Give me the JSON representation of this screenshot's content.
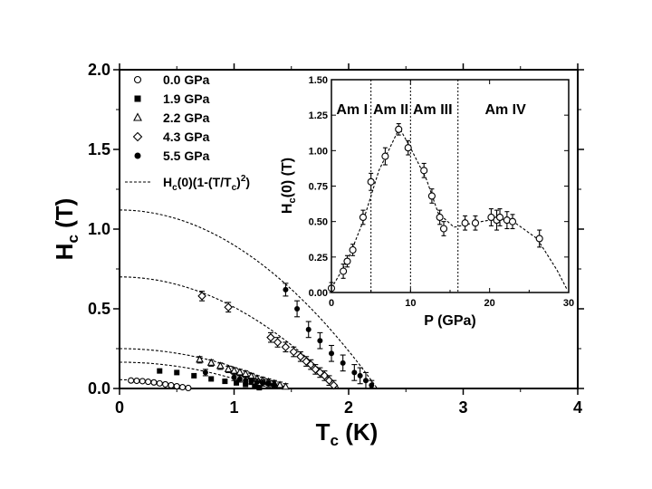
{
  "chart_data": [
    {
      "type": "scatter",
      "xlabel": "T",
      "xlabel_sub": "c",
      "xlabel_unit": " (K)",
      "ylabel": "H",
      "ylabel_sub": "c",
      "ylabel_unit": " (T)",
      "xlim": [
        0,
        4
      ],
      "ylim": [
        0,
        2.0
      ],
      "xticks": [
        0,
        1,
        2,
        3,
        4
      ],
      "xtick_labels": [
        "0",
        "1",
        "2",
        "3",
        "4"
      ],
      "yticks": [
        0,
        0.5,
        1.0,
        1.5,
        2.0
      ],
      "ytick_labels": [
        "0.0",
        "0.5",
        "1.0",
        "1.5",
        "2.0"
      ],
      "legend_position": "top-left",
      "series": [
        {
          "name": "0.0 GPa",
          "marker": "open-circle",
          "x": [
            0.1,
            0.15,
            0.2,
            0.25,
            0.3,
            0.35,
            0.4,
            0.45,
            0.5,
            0.55,
            0.6
          ],
          "y": [
            0.05,
            0.048,
            0.046,
            0.042,
            0.038,
            0.032,
            0.026,
            0.02,
            0.014,
            0.008,
            0.003
          ]
        },
        {
          "name": "1.9 GPa",
          "marker": "filled-square",
          "x": [
            0.35,
            0.5,
            0.65,
            0.8,
            0.92,
            1.02,
            1.1,
            1.18,
            1.22
          ],
          "y": [
            0.11,
            0.1,
            0.08,
            0.06,
            0.045,
            0.035,
            0.025,
            0.015,
            0.005
          ]
        },
        {
          "name": "2.2 GPa",
          "marker": "open-triangle",
          "x": [
            0.7,
            0.8,
            0.88,
            0.95,
            1.0,
            1.05,
            1.1,
            1.15,
            1.2,
            1.25,
            1.3,
            1.35,
            1.4,
            1.45
          ],
          "y": [
            0.18,
            0.16,
            0.14,
            0.12,
            0.11,
            0.1,
            0.09,
            0.075,
            0.06,
            0.05,
            0.04,
            0.03,
            0.02,
            0.01
          ],
          "yerr": [
            0.02,
            0.02,
            0.02,
            0.02,
            0.02,
            0.02,
            0.02,
            0.02,
            0.02,
            0.02,
            0.02,
            0.02,
            0.02,
            0.02
          ]
        },
        {
          "name": "4.3 GPa",
          "marker": "open-diamond",
          "x": [
            0.72,
            0.95,
            1.32,
            1.38,
            1.45,
            1.52,
            1.58,
            1.63,
            1.67,
            1.71,
            1.75,
            1.79,
            1.83,
            1.87
          ],
          "y": [
            0.58,
            0.51,
            0.32,
            0.29,
            0.26,
            0.23,
            0.2,
            0.17,
            0.15,
            0.12,
            0.1,
            0.08,
            0.05,
            0.02
          ],
          "yerr": [
            0.03,
            0.03,
            0.03,
            0.03,
            0.03,
            0.03,
            0.03,
            0.03,
            0.03,
            0.03,
            0.03,
            0.03,
            0.03,
            0.03
          ]
        },
        {
          "name": "5.5 GPa",
          "marker": "filled-circle",
          "x": [
            0.75,
            1.0,
            1.05,
            1.1,
            1.15,
            1.2,
            1.25,
            1.3,
            1.35,
            1.45,
            1.55,
            1.65,
            1.75,
            1.85,
            1.95,
            2.05,
            2.1,
            2.15,
            2.2
          ],
          "y": [
            0.1,
            0.07,
            0.06,
            0.05,
            0.045,
            0.04,
            0.035,
            0.03,
            0.025,
            0.62,
            0.5,
            0.37,
            0.3,
            0.22,
            0.16,
            0.1,
            0.08,
            0.05,
            0.02
          ],
          "yerr": [
            0.02,
            0.02,
            0.02,
            0.02,
            0.02,
            0.02,
            0.02,
            0.02,
            0.02,
            0.04,
            0.05,
            0.05,
            0.05,
            0.05,
            0.05,
            0.05,
            0.05,
            0.05,
            0.03
          ]
        }
      ],
      "fits": [
        {
          "h0": 1.12,
          "tc": 2.25
        },
        {
          "h0": 0.7,
          "tc": 1.92
        },
        {
          "h0": 0.25,
          "tc": 1.47
        },
        {
          "h0": 0.165,
          "tc": 1.26
        },
        {
          "h0": 0.055,
          "tc": 0.65
        }
      ],
      "legend_fit_label_parts": [
        "H",
        "c",
        "(0)(1-(T/T",
        "c",
        ")",
        "2",
        ")"
      ]
    },
    {
      "type": "scatter",
      "xlabel": "P (GPa)",
      "ylabel": "H",
      "ylabel_sub": "c",
      "ylabel_unit": "(0) (T)",
      "xlim": [
        0,
        30
      ],
      "ylim": [
        0,
        1.5
      ],
      "xticks": [
        0,
        10,
        20,
        30
      ],
      "xtick_labels": [
        "0",
        "10",
        "20",
        "30"
      ],
      "yticks": [
        0,
        0.25,
        0.5,
        0.75,
        1.0,
        1.25,
        1.5
      ],
      "ytick_labels": [
        "0.00",
        "0.25",
        "0.50",
        "0.75",
        "1.00",
        "1.25",
        "1.50"
      ],
      "phases": [
        {
          "label": "Am I",
          "x": 2.6
        },
        {
          "label": "Am II",
          "x": 7.5
        },
        {
          "label": "Am III",
          "x": 12.8
        },
        {
          "label": "Am IV",
          "x": 22.0
        }
      ],
      "phase_boundaries": [
        5,
        10,
        16
      ],
      "series": [
        {
          "name": "Hc(0)",
          "marker": "open-circle",
          "x": [
            0,
            1.5,
            2.0,
            2.7,
            4.0,
            5.0,
            6.8,
            8.5,
            9.7,
            11.7,
            12.7,
            13.7,
            14.2,
            16.9,
            18.2,
            20.2,
            20.9,
            21.3,
            22.2,
            22.9,
            26.3
          ],
          "y": [
            0.03,
            0.15,
            0.22,
            0.3,
            0.53,
            0.78,
            0.96,
            1.15,
            1.02,
            0.86,
            0.68,
            0.53,
            0.45,
            0.49,
            0.49,
            0.53,
            0.51,
            0.53,
            0.51,
            0.5,
            0.38
          ],
          "yerr": [
            0.04,
            0.05,
            0.04,
            0.04,
            0.05,
            0.06,
            0.06,
            0.04,
            0.05,
            0.05,
            0.05,
            0.05,
            0.05,
            0.05,
            0.05,
            0.06,
            0.07,
            0.06,
            0.06,
            0.05,
            0.06
          ]
        }
      ]
    }
  ]
}
